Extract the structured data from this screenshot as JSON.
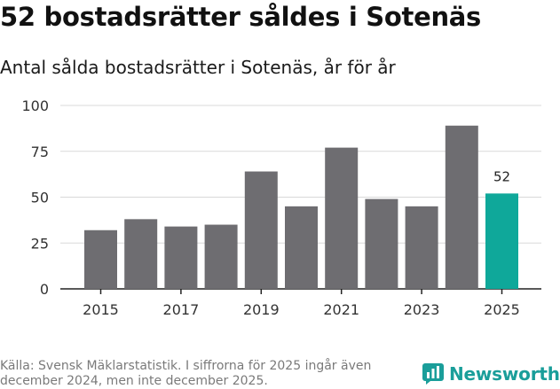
{
  "header": {
    "title": "52 bostadsrätter såldes i Sotenäs",
    "subtitle": "Antal sålda bostadsrätter i Sotenäs, år för år"
  },
  "chart_data": {
    "type": "bar",
    "title": "52 bostadsrätter såldes i Sotenäs",
    "subtitle": "Antal sålda bostadsrätter i Sotenäs, år för år",
    "xlabel": "",
    "ylabel": "",
    "categories": [
      "2015",
      "2016",
      "2017",
      "2018",
      "2019",
      "2020",
      "2021",
      "2022",
      "2023",
      "2024",
      "2025"
    ],
    "x_tick_labels": [
      "2015",
      "2017",
      "2019",
      "2021",
      "2023",
      "2025"
    ],
    "values": [
      32,
      38,
      34,
      35,
      64,
      45,
      77,
      49,
      45,
      89,
      52
    ],
    "ylim": [
      0,
      100
    ],
    "y_ticks": [
      0,
      25,
      50,
      75,
      100
    ],
    "grid": true,
    "highlight_index": 10,
    "data_labels": [
      {
        "index": 10,
        "text": "52"
      }
    ],
    "colors": {
      "bar": "#6e6d71",
      "highlight": "#0fa89a",
      "grid": "#d9d9d9",
      "axis": "#222222"
    }
  },
  "footer": {
    "source": "Källa: Svensk Mäklarstatistik. I siffrorna för 2025 ingår även december 2024, men inte december 2025."
  },
  "logo": {
    "text": "Newsworthy",
    "color": "#1a9e9a",
    "icon": "bar-chart-logo-icon"
  }
}
